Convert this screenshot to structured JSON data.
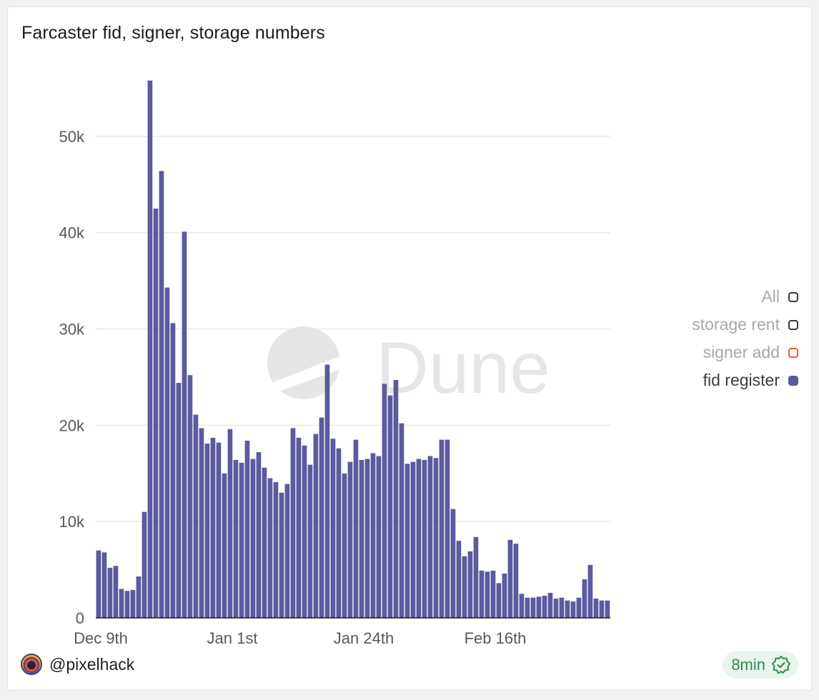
{
  "card": {
    "title": "Farcaster fid, signer, storage numbers"
  },
  "legend": {
    "items": [
      {
        "label": "All",
        "active": false,
        "border": "#3a3a3a",
        "fill": "transparent"
      },
      {
        "label": "storage rent",
        "active": false,
        "border": "#3a3a3a",
        "fill": "transparent"
      },
      {
        "label": "signer add",
        "active": false,
        "border": "#e35d3a",
        "fill": "transparent"
      },
      {
        "label": "fid register",
        "active": true,
        "border": "#5b5a9e",
        "fill": "#5b5a9e"
      }
    ]
  },
  "watermark": {
    "text": "Dune"
  },
  "footer": {
    "username": "@pixelhack",
    "freshness": "8min"
  },
  "colors": {
    "bar": "#5b5a9e",
    "grid": "#e9e9e9",
    "axis_text": "#595959",
    "watermark": "#e6e6e6"
  },
  "chart_data": {
    "type": "bar",
    "title": "Farcaster fid, signer, storage numbers",
    "series_name": "fid register",
    "ylim": [
      0,
      56000
    ],
    "yticks": [
      {
        "value": 0,
        "label": "0"
      },
      {
        "value": 10000,
        "label": "10k"
      },
      {
        "value": 20000,
        "label": "20k"
      },
      {
        "value": 30000,
        "label": "30k"
      },
      {
        "value": 40000,
        "label": "40k"
      },
      {
        "value": 50000,
        "label": "50k"
      }
    ],
    "xticks": [
      {
        "index": 0,
        "label": "Dec 9th"
      },
      {
        "index": 23,
        "label": "Jan 1st"
      },
      {
        "index": 46,
        "label": "Jan 24th"
      },
      {
        "index": 69,
        "label": "Feb 16th"
      }
    ],
    "start_date": "Dec 9th",
    "values": [
      7000,
      6800,
      5200,
      5400,
      3000,
      2800,
      2900,
      4300,
      11000,
      55800,
      42500,
      46400,
      34300,
      30600,
      24400,
      40100,
      25200,
      21100,
      19700,
      18100,
      18700,
      18200,
      15000,
      19600,
      16400,
      16100,
      18400,
      16500,
      17200,
      15600,
      14500,
      14100,
      13000,
      13900,
      19700,
      18700,
      17900,
      15900,
      19100,
      20800,
      26300,
      18600,
      17600,
      15000,
      16200,
      18500,
      16400,
      16500,
      17100,
      16800,
      24300,
      23100,
      24700,
      20200,
      16000,
      16200,
      16500,
      16400,
      16800,
      16600,
      18500,
      18500,
      11300,
      8000,
      6400,
      6900,
      8400,
      4900,
      4800,
      4900,
      3600,
      4600,
      8100,
      7700,
      2500,
      2100,
      2100,
      2200,
      2300,
      2600,
      2000,
      2100,
      1800,
      1700,
      2100,
      4000,
      5500,
      2000,
      1800,
      1800
    ]
  }
}
